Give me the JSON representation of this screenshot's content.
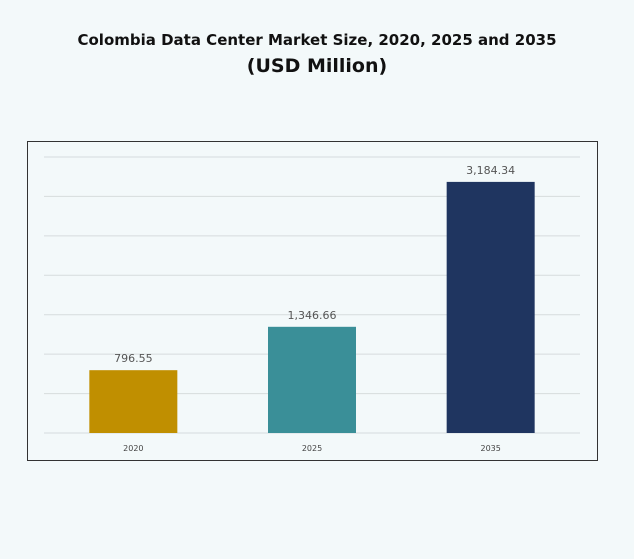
{
  "chart_data": {
    "type": "bar",
    "title": "Colombia Data Center Market Size, 2020, 2025 and 2035",
    "subtitle": "(USD Million)",
    "categories": [
      "2020",
      "2025",
      "2035"
    ],
    "values": [
      796.55,
      1346.66,
      3184.34
    ],
    "data_labels": [
      "796.55",
      "1,346.66",
      "3,184.34"
    ],
    "colors": [
      "#c08f00",
      "#3a8f98",
      "#1f3560"
    ],
    "ylim": [
      0,
      3500
    ],
    "grid": true,
    "legend": "none",
    "xlabel": "",
    "ylabel": ""
  }
}
